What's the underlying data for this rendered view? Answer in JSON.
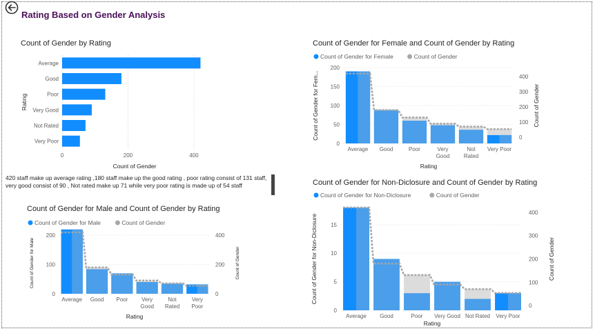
{
  "page_title": "Rating Based on Gender Analysis",
  "note": "420 staff make up average rating ,180 staff make up the good rating , poor rating consist of 131 staff, very good consist of 90 ,  Not rated make up 71 while very poor rating is made up of  54 staff",
  "colors": {
    "primary": "#118dff",
    "secondary": "#4a9eea",
    "gray": "#dcdcdc",
    "title": "#4b0f5a"
  },
  "icons": {
    "back": "back-arrow-icon"
  },
  "chart_data": [
    {
      "type": "bar",
      "orientation": "horizontal",
      "title": "Count of Gender by Rating",
      "categories": [
        "Average",
        "Good",
        "Poor",
        "Very Good",
        "Not Rated",
        "Very Poor"
      ],
      "values": [
        420,
        180,
        131,
        90,
        71,
        54
      ],
      "xlabel": "Count of Gender",
      "ylabel": "Rating",
      "xticks": [
        "0",
        "200",
        "400"
      ],
      "xlim": [
        0,
        440
      ],
      "grid": true
    },
    {
      "type": "bar",
      "title": "Count of Gender for Female and Count of Gender by Rating",
      "categories": [
        "Average",
        "Good",
        "Poor",
        "Very Good",
        "Not Rated",
        "Very Poor"
      ],
      "category_labels": [
        [
          "Average"
        ],
        [
          "Good"
        ],
        [
          "Poor"
        ],
        [
          "Very",
          "Good"
        ],
        [
          "Not",
          "Rated"
        ],
        [
          "Very Poor"
        ]
      ],
      "series": [
        {
          "name": "Count of Gender for Female",
          "values": [
            190,
            88,
            60,
            48,
            36,
            22
          ],
          "axis": "left"
        },
        {
          "name": "Count of Gender",
          "values": [
            420,
            180,
            131,
            90,
            71,
            54
          ],
          "axis": "right"
        }
      ],
      "xlabel": "Rating",
      "ylabel": "Count of Gender for Fem...",
      "ylabel_right": "Count of Gender",
      "ylim": [
        0,
        200
      ],
      "ylim_right": [
        -40,
        460
      ],
      "yticks": [
        "0",
        "50",
        "100",
        "150",
        "200"
      ],
      "yticks_right": [
        "0",
        "100",
        "200",
        "300",
        "400"
      ],
      "legend": "top-left"
    },
    {
      "type": "bar",
      "title": "Count of Gender for Male and Count of Gender by Rating",
      "categories": [
        "Average",
        "Good",
        "Poor",
        "Very Good",
        "Not Rated",
        "Very Poor"
      ],
      "category_labels": [
        [
          "Average"
        ],
        [
          "Good"
        ],
        [
          "Poor"
        ],
        [
          "Very",
          "Good"
        ],
        [
          "Not",
          "Rated"
        ],
        [
          "Very",
          "Poor"
        ]
      ],
      "series": [
        {
          "name": "Count of Gender for Male",
          "values": [
            220,
            84,
            70,
            40,
            35,
            32
          ],
          "axis": "left"
        },
        {
          "name": "Count of Gender",
          "values": [
            420,
            180,
            131,
            90,
            71,
            54
          ],
          "axis": "right"
        }
      ],
      "xlabel": "Rating",
      "ylabel": "Count of Gender for Male",
      "ylabel_right": "Count of Gender",
      "ylim": [
        0,
        210
      ],
      "ylim_right": [
        0,
        420
      ],
      "yticks": [
        "0",
        "100",
        "200"
      ],
      "yticks_right": [
        "0",
        "200",
        "400"
      ],
      "legend": "top-left"
    },
    {
      "type": "bar",
      "title": "Count of Gender for Non-Diclosure and Count of Gender by Rating",
      "categories": [
        "Average",
        "Good",
        "Poor",
        "Very Good",
        "Not Rated",
        "Very Poor"
      ],
      "category_labels": [
        [
          "Average"
        ],
        [
          "Good"
        ],
        [
          "Poor"
        ],
        [
          "Very Good"
        ],
        [
          "Not Rated"
        ],
        [
          "Very Poor"
        ]
      ],
      "series": [
        {
          "name": "Count of Gender for Non-Diclosure",
          "values": [
            18,
            9,
            3,
            5,
            2,
            3
          ],
          "axis": "left"
        },
        {
          "name": "Count of Gender",
          "values": [
            420,
            180,
            131,
            90,
            71,
            54
          ],
          "axis": "right"
        }
      ],
      "xlabel": "Rating",
      "ylabel": "Count of Gender for Non-Diclosure",
      "ylabel_right": "Count of Gender",
      "ylim": [
        0,
        18
      ],
      "ylim_right": [
        -20,
        420
      ],
      "yticks": [
        "0",
        "5",
        "10",
        "15"
      ],
      "yticks_right": [
        "0",
        "100",
        "200",
        "300",
        "400"
      ],
      "legend": "top-left"
    }
  ]
}
